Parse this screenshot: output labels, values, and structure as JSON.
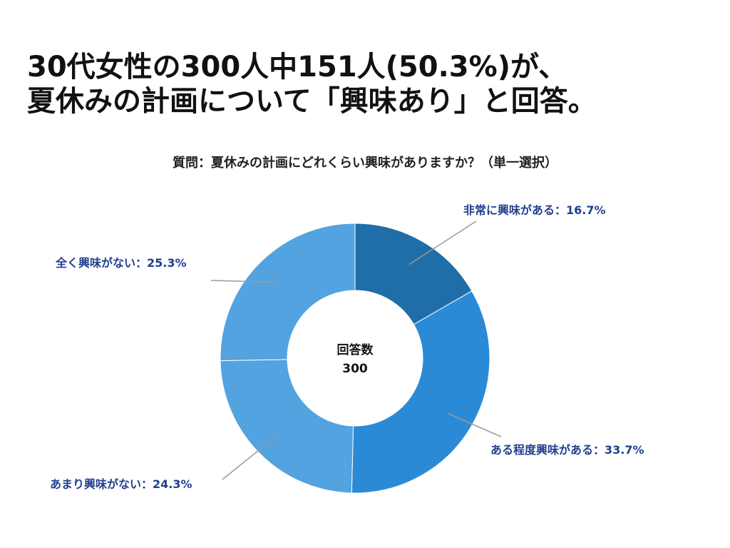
{
  "headline": {
    "line1": "30代女性の300人中151人(50.3%)が、",
    "line2": "夏休みの計画について「興味あり」と回答。"
  },
  "chart_data": {
    "type": "pie",
    "title": "質問：夏休みの計画にどれくらい興味がありますか？（単一選択）",
    "center_label": "回答数",
    "center_value": "300",
    "categories": [
      "非常に興味がある",
      "ある程度興味がある",
      "あまり興味がない",
      "全く興味がない"
    ],
    "values": [
      16.7,
      33.7,
      24.3,
      25.3
    ],
    "labels": [
      "非常に興味がある：16.7%",
      "ある程度興味がある：33.7%",
      "あまり興味がない：24.3%",
      "全く興味がない：25.3%"
    ],
    "colors": [
      "#1f6ea8",
      "#2b8ad6",
      "#52a3df",
      "#52a3df"
    ],
    "label_color": "#1f3f8f",
    "donut": true
  }
}
